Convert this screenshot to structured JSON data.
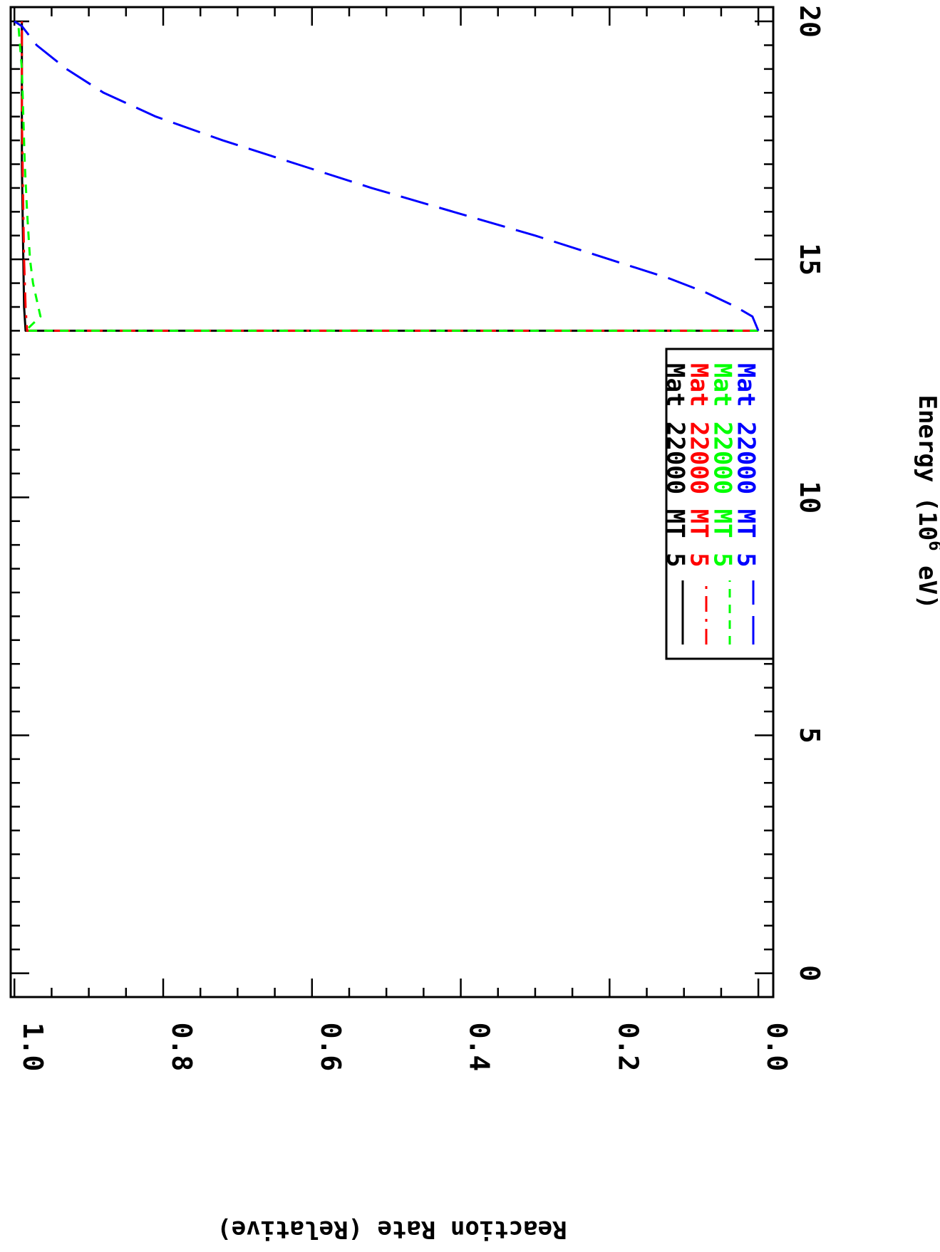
{
  "chart_data": {
    "type": "line",
    "xlabel": "Energy (10",
    "xlabel_sup": "6",
    "xlabel_suffix": " eV)",
    "ylabel": "Reaction Rate (Relative)",
    "xlim": [
      -0.5,
      20.3
    ],
    "ylim": [
      -0.02,
      1.005
    ],
    "xticks": [
      0,
      5,
      10,
      15,
      20
    ],
    "xtick_labels": [
      "0",
      "5",
      "10",
      "15",
      "20"
    ],
    "yticks": [
      0.0,
      0.2,
      0.4,
      0.6,
      0.8,
      1.0
    ],
    "ytick_labels": [
      "0.0",
      "0.2",
      "0.4",
      "0.6",
      "0.8",
      "1.0"
    ],
    "x_minor_step": 0.5,
    "y_minor_step": 0.05,
    "rotated": true,
    "grid": false,
    "legend_position": "bottom-center",
    "series": [
      {
        "name": "Mat 22000 MT 5",
        "label_parts": [
          "Mat",
          "22000",
          "MT",
          "5"
        ],
        "color": "#000000",
        "dash": "solid",
        "x": [
          13.5,
          13.5,
          14.0,
          15.0,
          16.0,
          17.0,
          18.0,
          19.0,
          20.0
        ],
        "y": [
          0.0,
          0.985,
          0.987,
          0.988,
          0.989,
          0.99,
          0.99,
          0.99,
          0.99
        ]
      },
      {
        "name": "Mat 22000 MT 5",
        "label_parts": [
          "Mat",
          "22000",
          "MT",
          "5"
        ],
        "color": "#ff0000",
        "dash": "dash-dot",
        "x": [
          13.5,
          13.5,
          14.0,
          15.0,
          16.0,
          17.0,
          18.0,
          19.0,
          20.0
        ],
        "y": [
          0.0,
          0.983,
          0.985,
          0.987,
          0.988,
          0.989,
          0.99,
          0.99,
          0.99
        ]
      },
      {
        "name": "Mat 22000 MT 5",
        "label_parts": [
          "Mat",
          "22000",
          "MT",
          "5"
        ],
        "color": "#00ff00",
        "dash": "short-dash",
        "x": [
          13.5,
          13.5,
          13.8,
          14.5,
          15.0,
          16.0,
          17.0,
          18.0,
          19.0,
          20.0
        ],
        "y": [
          0.0,
          0.985,
          0.965,
          0.975,
          0.979,
          0.983,
          0.986,
          0.988,
          0.99,
          0.995
        ]
      },
      {
        "name": "Mat 22000 MT 5",
        "label_parts": [
          "Mat",
          "22000",
          "MT",
          "5"
        ],
        "color": "#0000ff",
        "dash": "long-dash",
        "x": [
          13.5,
          13.8,
          14.0,
          14.3,
          14.6,
          15.0,
          15.5,
          16.0,
          16.5,
          17.0,
          17.5,
          18.0,
          18.5,
          19.0,
          19.5,
          19.9,
          20.0
        ],
        "y": [
          0.0,
          0.008,
          0.03,
          0.07,
          0.12,
          0.2,
          0.3,
          0.41,
          0.52,
          0.62,
          0.72,
          0.81,
          0.88,
          0.93,
          0.97,
          0.99,
          1.0
        ]
      }
    ]
  }
}
